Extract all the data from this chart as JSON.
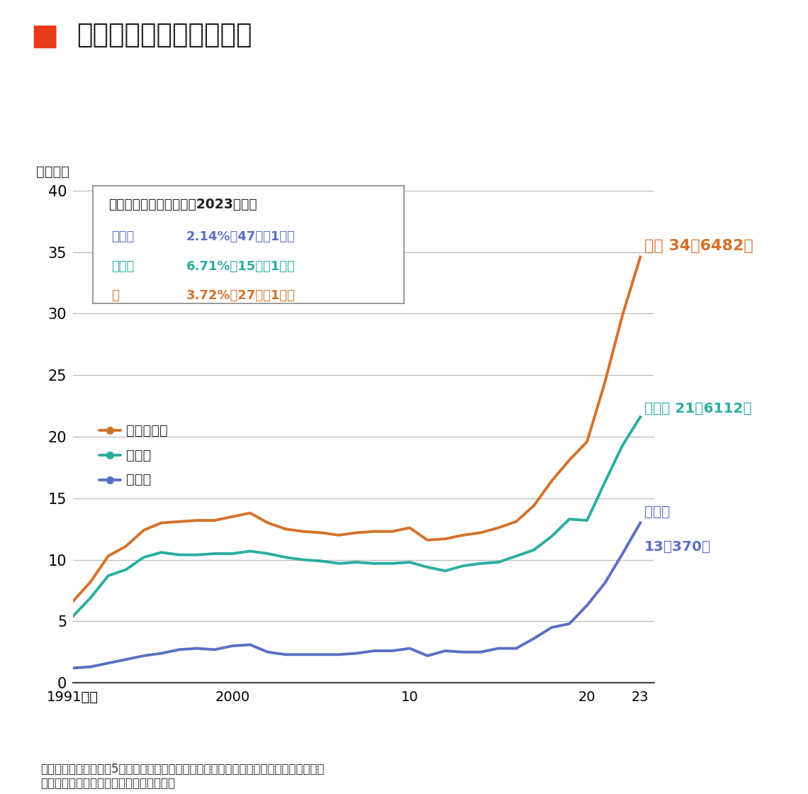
{
  "title": "不登校児童生徒数の推移",
  "ylabel": "（万人）",
  "source_text": "（出所）文科省「令和5年度　児童生徒の問題行動・不登校等生徒指導上の諸課題に関す\nる調査結果について」を基に東洋経済作成",
  "years": [
    1991,
    1992,
    1993,
    1994,
    1995,
    1996,
    1997,
    1998,
    1999,
    2000,
    2001,
    2002,
    2003,
    2004,
    2005,
    2006,
    2007,
    2008,
    2009,
    2010,
    2011,
    2012,
    2013,
    2014,
    2015,
    2016,
    2017,
    2018,
    2019,
    2020,
    2021,
    2022,
    2023
  ],
  "total": [
    6.6,
    8.2,
    10.3,
    11.1,
    12.4,
    13.0,
    13.1,
    13.2,
    13.2,
    13.5,
    13.8,
    13.0,
    12.5,
    12.3,
    12.2,
    12.0,
    12.2,
    12.3,
    12.3,
    12.6,
    11.6,
    11.7,
    12.0,
    12.2,
    12.6,
    13.1,
    14.4,
    16.4,
    18.1,
    19.6,
    24.4,
    29.9,
    34.6
  ],
  "chugako": [
    5.4,
    6.9,
    8.7,
    9.2,
    10.2,
    10.6,
    10.4,
    10.4,
    10.5,
    10.5,
    10.7,
    10.5,
    10.2,
    10.0,
    9.9,
    9.7,
    9.8,
    9.7,
    9.7,
    9.8,
    9.4,
    9.1,
    9.5,
    9.7,
    9.8,
    10.3,
    10.8,
    11.9,
    13.3,
    13.2,
    16.3,
    19.3,
    21.6
  ],
  "shogako": [
    1.2,
    1.3,
    1.6,
    1.9,
    2.2,
    2.4,
    2.7,
    2.8,
    2.7,
    3.0,
    3.1,
    2.5,
    2.3,
    2.3,
    2.3,
    2.3,
    2.4,
    2.6,
    2.6,
    2.8,
    2.2,
    2.6,
    2.5,
    2.5,
    2.8,
    2.8,
    3.6,
    4.5,
    4.8,
    6.3,
    8.1,
    10.5,
    13.0
  ],
  "color_total": "#D4722A",
  "color_chugako": "#2AADA0",
  "color_shogako": "#5B6FC4",
  "color_title_red": "#E8391C",
  "ylim": [
    0,
    40
  ],
  "yticks": [
    0,
    5,
    10,
    15,
    20,
    25,
    30,
    35,
    40
  ],
  "xtick_positions": [
    1991,
    1992,
    1993,
    1994,
    1995,
    1996,
    1997,
    1998,
    1999,
    2000,
    2001,
    2002,
    2003,
    2004,
    2005,
    2006,
    2007,
    2008,
    2009,
    2010,
    2011,
    2012,
    2013,
    2014,
    2015,
    2016,
    2017,
    2018,
    2019,
    2020,
    2021,
    2022,
    2023
  ],
  "xtick_labels": [
    "1991年度",
    "",
    "",
    "",
    "",
    "",
    "",
    "",
    "",
    "2000",
    "",
    "",
    "",
    "",
    "",
    "",
    "",
    "",
    "",
    "10",
    "",
    "",
    "",
    "",
    "",
    "",
    "",
    "",
    "",
    "20",
    "",
    "",
    "23"
  ],
  "infobox_title": "不登校児童生徒の割合（2023年度）",
  "infobox_lines": [
    {
      "label": "小学校",
      "tab": "　　",
      "text": "2.14%（47人に1人）",
      "color": "#5B6FC4"
    },
    {
      "label": "中学校",
      "tab": "　　",
      "text": "6.71%（15人に1人）",
      "color": "#2AADA0"
    },
    {
      "label": "計",
      "tab": "　　　　",
      "text": "3.72%（27人に1人）",
      "color": "#D4722A"
    }
  ],
  "legend_items": [
    {
      "label": "小・中合計",
      "color": "#D4722A"
    },
    {
      "label": "中学校",
      "color": "#2AADA0"
    },
    {
      "label": "小学校",
      "color": "#5B6FC4"
    }
  ],
  "annotation_total": "合計 34万6482人",
  "annotation_chugako": "中学校 21万6112人",
  "annotation_shogako_line1": "小学校",
  "annotation_shogako_line2": "13万370人",
  "grid_color": "#BBBBBB",
  "background_color": "#FFFFFF"
}
